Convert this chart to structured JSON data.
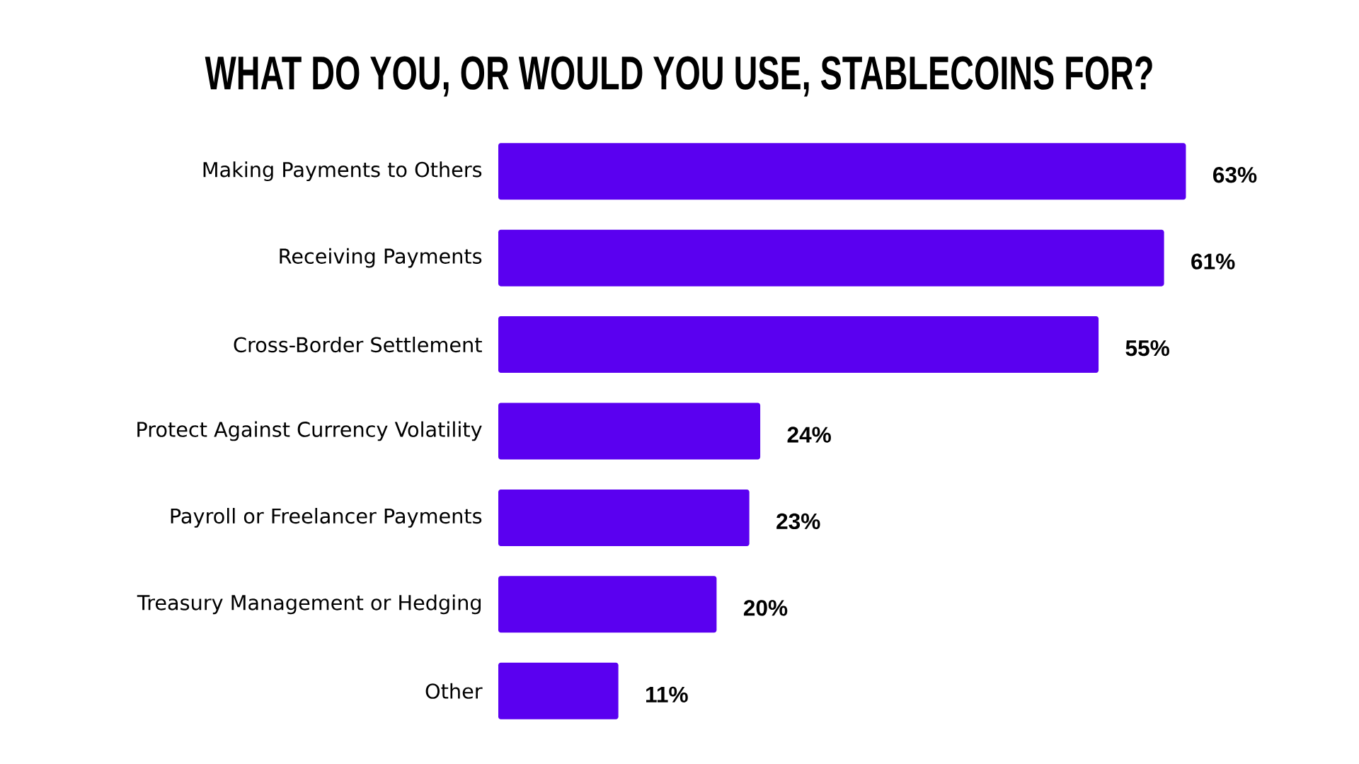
{
  "chart_data": {
    "type": "bar",
    "orientation": "horizontal",
    "title": "WHAT DO YOU, OR WOULD YOU USE, STABLECOINS FOR?",
    "categories": [
      "Making Payments to Others",
      "Receiving Payments",
      "Cross-Border Settlement",
      "Protect Against Currency Volatility",
      "Payroll or Freelancer Payments",
      "Treasury Management or Hedging",
      "Other"
    ],
    "values": [
      63,
      61,
      55,
      24,
      23,
      20,
      11
    ],
    "value_labels": [
      "63%",
      "61%",
      "55%",
      "24%",
      "23%",
      "20%",
      "11%"
    ],
    "color": "#5a00f0"
  }
}
